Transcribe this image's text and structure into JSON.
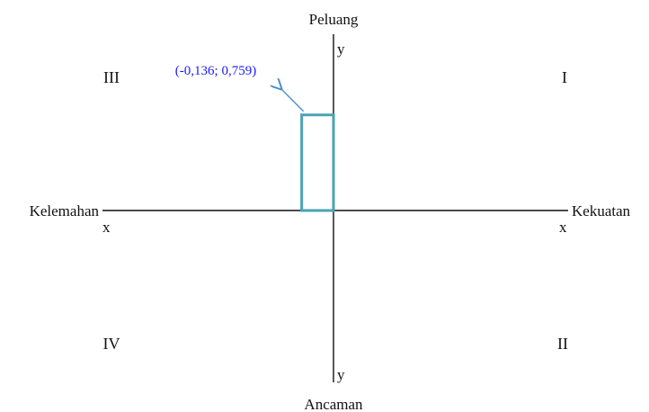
{
  "axes": {
    "top_label": "Peluang",
    "bottom_label": "Ancaman",
    "left_label": "Kelemahan",
    "right_label": "Kekuatan",
    "y_top_marker": "y",
    "y_bottom_marker": "y",
    "x_left_marker": "x",
    "x_right_marker": "x"
  },
  "quadrants": {
    "q1": "I",
    "q2": "II",
    "q3": "III",
    "q4": "IV"
  },
  "point": {
    "x": -0.136,
    "y": 0.759,
    "label": "(-0,136; 0,759)"
  },
  "colors": {
    "axis": "#111111",
    "rectangle": "#4aa3b5",
    "annotation_text": "#1a1aff",
    "arrow": "#4a90c8"
  }
}
